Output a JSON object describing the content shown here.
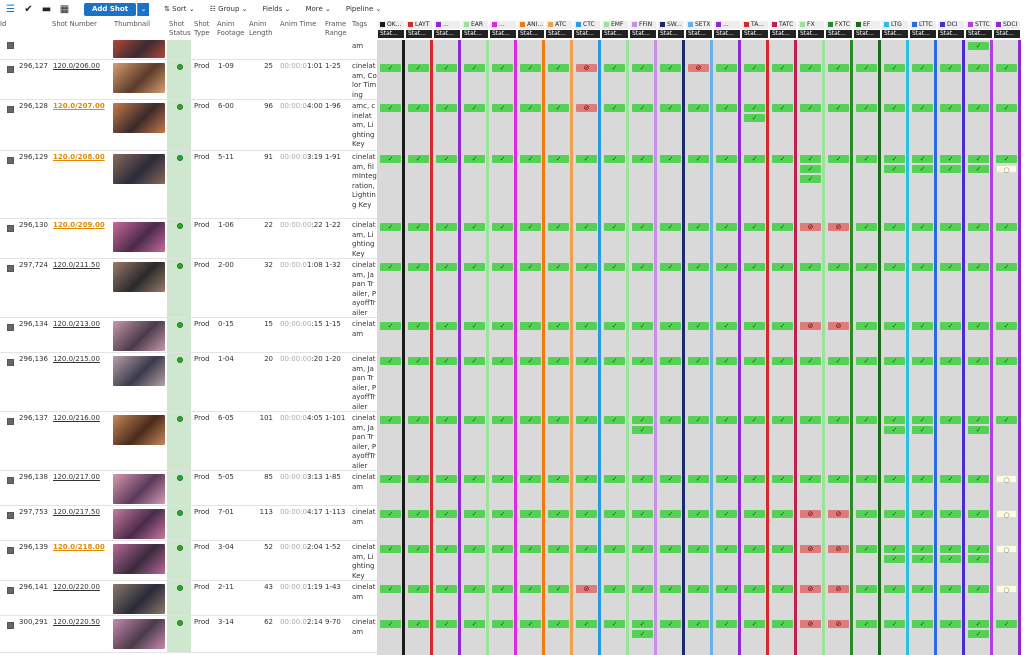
{
  "toolbar": {
    "add_shot_label": "Add Shot",
    "add_shot_caret": "⌄",
    "icons": [
      "list-icon",
      "check-circle-icon",
      "grid-icon",
      "calendar-icon"
    ],
    "menus": [
      {
        "label": "Sort",
        "icon": "sort-icon"
      },
      {
        "label": "Group",
        "icon": "group-icon"
      },
      {
        "label": "Fields",
        "icon": ""
      },
      {
        "label": "More",
        "icon": ""
      },
      {
        "label": "Pipeline",
        "icon": ""
      }
    ]
  },
  "columns": {
    "id": "Id",
    "shot_number": "Shot Number",
    "thumbnail": "Thumbnail",
    "shot_status": "Shot Status",
    "shot_type": "Shot Type",
    "anim_footage": "Anim Footage",
    "anim_length": "Anim Length",
    "anim_time": "Anim Time",
    "frame_range": "Frame Range",
    "tags": "Tags"
  },
  "steps": [
    {
      "name": "OK...",
      "color": "#1a1a1a"
    },
    {
      "name": "LAYT",
      "color": "#d42a2a"
    },
    {
      "name": "...",
      "color": "#8e2ad4"
    },
    {
      "name": "EAR",
      "color": "#9be29b"
    },
    {
      "name": "...",
      "color": "#e02ae0"
    },
    {
      "name": "ANI...",
      "color": "#f07a10"
    },
    {
      "name": "ATC",
      "color": "#f0a050"
    },
    {
      "name": "CTC",
      "color": "#2a9ae0"
    },
    {
      "name": "EMF",
      "color": "#9be29b"
    },
    {
      "name": "FFIN",
      "color": "#c890e8"
    },
    {
      "name": "SW...",
      "color": "#1a2a6a"
    },
    {
      "name": "SETX",
      "color": "#6ab0e8"
    },
    {
      "name": "...",
      "color": "#8e2ad4"
    },
    {
      "name": "TA...",
      "color": "#d42a2a"
    },
    {
      "name": "TATC",
      "color": "#c02050"
    },
    {
      "name": "FX",
      "color": "#9be29b"
    },
    {
      "name": "FXTC",
      "color": "#2a8a2a"
    },
    {
      "name": "EF",
      "color": "#1a6a1a"
    },
    {
      "name": "LTG",
      "color": "#2ac0e0"
    },
    {
      "name": "LTTC",
      "color": "#2a6ae0"
    },
    {
      "name": "DCI",
      "color": "#4a2ad4"
    },
    {
      "name": "STTC",
      "color": "#b040e0"
    },
    {
      "name": "SDCI",
      "color": "#8e2ad4"
    }
  ],
  "step_status_label": "Stat...",
  "status_glyphs": {
    "fin": "✓",
    "hld": "⊘",
    "wtg": "○"
  },
  "rows": [
    {
      "id": "",
      "shot": "",
      "hl": false,
      "type": "",
      "footage": "",
      "length": "",
      "time_dim": "",
      "time": "",
      "range": "",
      "tags": "am",
      "thumb": [
        "#b24a3a",
        "#3a2a30"
      ],
      "h": 20,
      "tasks": {
        "21": [
          "fin"
        ]
      }
    },
    {
      "id": "296,127",
      "shot": "120.0/206.00",
      "hl": false,
      "type": "Prod",
      "footage": "1-09",
      "length": "25",
      "time_dim": "00:00:0",
      "time": "1:01",
      "range": "1-25",
      "tags": "cinelat am, Color Timing",
      "thumb": [
        "#d8a070",
        "#5a3a2a"
      ],
      "h": 40,
      "tasks": {
        "7": [
          "hld"
        ],
        "11": [
          "hld"
        ]
      }
    },
    {
      "id": "296,128",
      "shot": "120.0/207.00",
      "hl": true,
      "type": "Prod",
      "footage": "6-00",
      "length": "96",
      "time_dim": "00:00:0",
      "time": "4:00",
      "range": "1-96",
      "tags": "amc, cinelat am, Lighting Key",
      "thumb": [
        "#c87a4a",
        "#3a2a2a"
      ],
      "h": 51,
      "tasks": {
        "7": [
          "hld"
        ],
        "13": [
          "fin",
          "fin"
        ]
      }
    },
    {
      "id": "296,129",
      "shot": "120.0/208.00",
      "hl": true,
      "type": "Prod",
      "footage": "5-11",
      "length": "91",
      "time_dim": "00:00:0",
      "time": "3:19",
      "range": "1-91",
      "tags": "cinelat am, filmIntegration, Lighting Key",
      "thumb": [
        "#8a6a5a",
        "#2a2a3a"
      ],
      "h": 68,
      "tasks": {
        "15": [
          "fin",
          "fin",
          "fin"
        ],
        "18": [
          "fin",
          "fin"
        ],
        "19": [
          "fin",
          "fin"
        ],
        "20": [
          "fin",
          "fin"
        ],
        "21": [
          "fin",
          "fin"
        ],
        "22": [
          "fin",
          "wtg"
        ]
      }
    },
    {
      "id": "296,130",
      "shot": "120.0/209.00",
      "hl": true,
      "type": "Prod",
      "footage": "1-06",
      "length": "22",
      "time_dim": "00:00:00",
      "time": ":22",
      "range": "1-22",
      "tags": "cinelat am, Lighting Key",
      "thumb": [
        "#c86a9a",
        "#4a2a4a"
      ],
      "h": 40,
      "tasks": {
        "15": [
          "hld"
        ],
        "16": [
          "hld"
        ]
      }
    },
    {
      "id": "297,724",
      "shot": "120.0/211.50",
      "hl": false,
      "type": "Prod",
      "footage": "2-00",
      "length": "32",
      "time_dim": "00:00:0",
      "time": "1:08",
      "range": "1-32",
      "tags": "cinelat am, Japan Trailer, PayoffTrailer",
      "thumb": [
        "#9a7a6a",
        "#2a2a2a"
      ],
      "h": 59,
      "tasks": {}
    },
    {
      "id": "296,134",
      "shot": "120.0/213.00",
      "hl": false,
      "type": "Prod",
      "footage": "0-15",
      "length": "15",
      "time_dim": "00:00:00",
      "time": ":15",
      "range": "1-15",
      "tags": "cinelat am",
      "thumb": [
        "#c89aaa",
        "#4a3a4a"
      ],
      "h": 35,
      "tasks": {
        "15": [
          "hld"
        ],
        "16": [
          "hld"
        ]
      }
    },
    {
      "id": "296,136",
      "shot": "120.0/215.00",
      "hl": false,
      "type": "Prod",
      "footage": "1-04",
      "length": "20",
      "time_dim": "00:00:00",
      "time": ":20",
      "range": "1-20",
      "tags": "cinelat am, Japan Trailer, PayoffTrailer",
      "thumb": [
        "#b8a0a8",
        "#3a3a4a"
      ],
      "h": 59,
      "tasks": {}
    },
    {
      "id": "296,137",
      "shot": "120.0/216.00",
      "hl": false,
      "type": "Prod",
      "footage": "6-05",
      "length": "101",
      "time_dim": "00:00:0",
      "time": "4:05",
      "range": "1-101",
      "tags": "cinelat am, Japan Trailer, PayoffTrailer",
      "thumb": [
        "#c88a5a",
        "#4a2a1a"
      ],
      "h": 59,
      "tasks": {
        "9": [
          "fin",
          "fin"
        ],
        "18": [
          "fin",
          "fin"
        ],
        "19": [
          "fin",
          "fin"
        ],
        "21": [
          "fin",
          "fin"
        ]
      }
    },
    {
      "id": "296,138",
      "shot": "120.0/217.00",
      "hl": false,
      "type": "Prod",
      "footage": "5-05",
      "length": "85",
      "time_dim": "00:00:0",
      "time": "3:13",
      "range": "1-85",
      "tags": "cinelat am",
      "thumb": [
        "#d89ab0",
        "#5a3a5a"
      ],
      "h": 35,
      "tasks": {
        "22": [
          "wtg"
        ]
      }
    },
    {
      "id": "297,753",
      "shot": "120.0/217.50",
      "hl": false,
      "type": "Prod",
      "footage": "7-01",
      "length": "113",
      "time_dim": "00:00:0",
      "time": "4:17",
      "range": "1-113",
      "tags": "cinelat am",
      "thumb": [
        "#c87aa0",
        "#4a2a4a"
      ],
      "h": 35,
      "tasks": {
        "15": [
          "hld"
        ],
        "16": [
          "hld"
        ],
        "22": [
          "wtg"
        ]
      }
    },
    {
      "id": "296,139",
      "shot": "120.0/218.00",
      "hl": true,
      "type": "Prod",
      "footage": "3-04",
      "length": "52",
      "time_dim": "00:00:0",
      "time": "2:04",
      "range": "1-52",
      "tags": "cinelat am, Lighting Key",
      "thumb": [
        "#b86a9a",
        "#3a2a3a"
      ],
      "h": 40,
      "tasks": {
        "15": [
          "hld"
        ],
        "16": [
          "hld"
        ],
        "18": [
          "fin",
          "fin"
        ],
        "19": [
          "fin",
          "fin"
        ],
        "20": [
          "fin",
          "fin"
        ],
        "21": [
          "fin",
          "fin"
        ],
        "22": [
          "wtg"
        ]
      }
    },
    {
      "id": "296,141",
      "shot": "120.0/220.00",
      "hl": false,
      "type": "Prod",
      "footage": "2-11",
      "length": "43",
      "time_dim": "00:00:0",
      "time": "1:19",
      "range": "1-43",
      "tags": "cinelat am",
      "thumb": [
        "#8a7a6a",
        "#2a2a3a"
      ],
      "h": 35,
      "tasks": {
        "7": [
          "hld"
        ],
        "15": [
          "hld"
        ],
        "16": [
          "hld"
        ],
        "22": [
          "wtg"
        ]
      }
    },
    {
      "id": "300,291",
      "shot": "120.0/220.50",
      "hl": false,
      "type": "Prod",
      "footage": "3-14",
      "length": "62",
      "time_dim": "00:00:0",
      "time": "2:14",
      "range": "9-70",
      "tags": "cinelat am",
      "thumb": [
        "#c88ab0",
        "#4a3a4a"
      ],
      "h": 37,
      "tasks": {
        "9": [
          "fin",
          "fin"
        ],
        "15": [
          "hld"
        ],
        "16": [
          "hld"
        ],
        "21": [
          "fin",
          "fin"
        ]
      }
    }
  ]
}
